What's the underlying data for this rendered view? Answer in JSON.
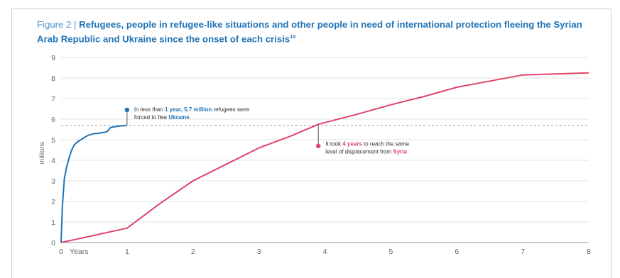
{
  "figure": {
    "prefix": "Figure 2 | ",
    "title": "Refugees, people in refugee-like situations and other people in need of international protection fleeing the Syrian Arab Republic and Ukraine since the onset of each crisis",
    "footnote_marker": "14"
  },
  "chart_data": {
    "type": "line",
    "ylabel": "millions",
    "xlabel": "Years",
    "xlim": [
      0,
      8
    ],
    "ylim": [
      0,
      9
    ],
    "x_ticks": [
      0,
      1,
      2,
      3,
      4,
      5,
      6,
      7,
      8
    ],
    "y_ticks": [
      0,
      1,
      2,
      3,
      4,
      5,
      6,
      7,
      8,
      9
    ],
    "grid": true,
    "reference_line": {
      "y": 5.7,
      "style": "dashed"
    },
    "colors": {
      "ukraine": "#1f73b7",
      "syria": "#e0456a",
      "grid": "#e3e3e3",
      "reference": "#9a9a9a"
    },
    "series": [
      {
        "key": "ukraine",
        "x": [
          0,
          0.02,
          0.05,
          0.08,
          0.12,
          0.16,
          0.2,
          0.25,
          0.3,
          0.35,
          0.4,
          0.45,
          0.5,
          0.55,
          0.6,
          0.65,
          0.7,
          0.75,
          0.8,
          0.85,
          0.9,
          0.95,
          1.0
        ],
        "y": [
          0,
          1.8,
          3.1,
          3.6,
          4.1,
          4.5,
          4.75,
          4.9,
          5.0,
          5.1,
          5.2,
          5.25,
          5.3,
          5.3,
          5.33,
          5.35,
          5.4,
          5.6,
          5.62,
          5.65,
          5.67,
          5.68,
          5.7
        ]
      },
      {
        "key": "syria",
        "x": [
          0,
          0.5,
          1.0,
          1.5,
          2.0,
          2.5,
          3.0,
          3.5,
          3.9,
          4.5,
          5.0,
          5.5,
          6.0,
          6.5,
          7.0,
          7.5,
          8.0
        ],
        "y": [
          0,
          0.35,
          0.7,
          1.9,
          3.0,
          3.8,
          4.6,
          5.2,
          5.75,
          6.25,
          6.7,
          7.1,
          7.55,
          7.85,
          8.15,
          8.2,
          8.25
        ]
      }
    ],
    "annotations": [
      {
        "key": "ukraine",
        "x": 1.0,
        "y_from": 5.7,
        "y_to": 6.45,
        "line1": [
          {
            "text": "In less than ",
            "style": "normal"
          },
          {
            "text": "1 year, 5.7 million",
            "style": "blue"
          },
          {
            "text": " refugees were",
            "style": "normal"
          }
        ],
        "line2": [
          {
            "text": "forced to flee ",
            "style": "normal"
          },
          {
            "text": "Ukraine",
            "style": "blue"
          }
        ]
      },
      {
        "key": "syria",
        "x": 3.9,
        "y_from": 5.7,
        "y_to": 4.7,
        "line1": [
          {
            "text": "It took ",
            "style": "normal"
          },
          {
            "text": "4 years",
            "style": "red"
          },
          {
            "text": " to reach the same",
            "style": "normal"
          }
        ],
        "line2": [
          {
            "text": "level of displacement from ",
            "style": "normal"
          },
          {
            "text": "Syria",
            "style": "red"
          }
        ]
      }
    ]
  }
}
